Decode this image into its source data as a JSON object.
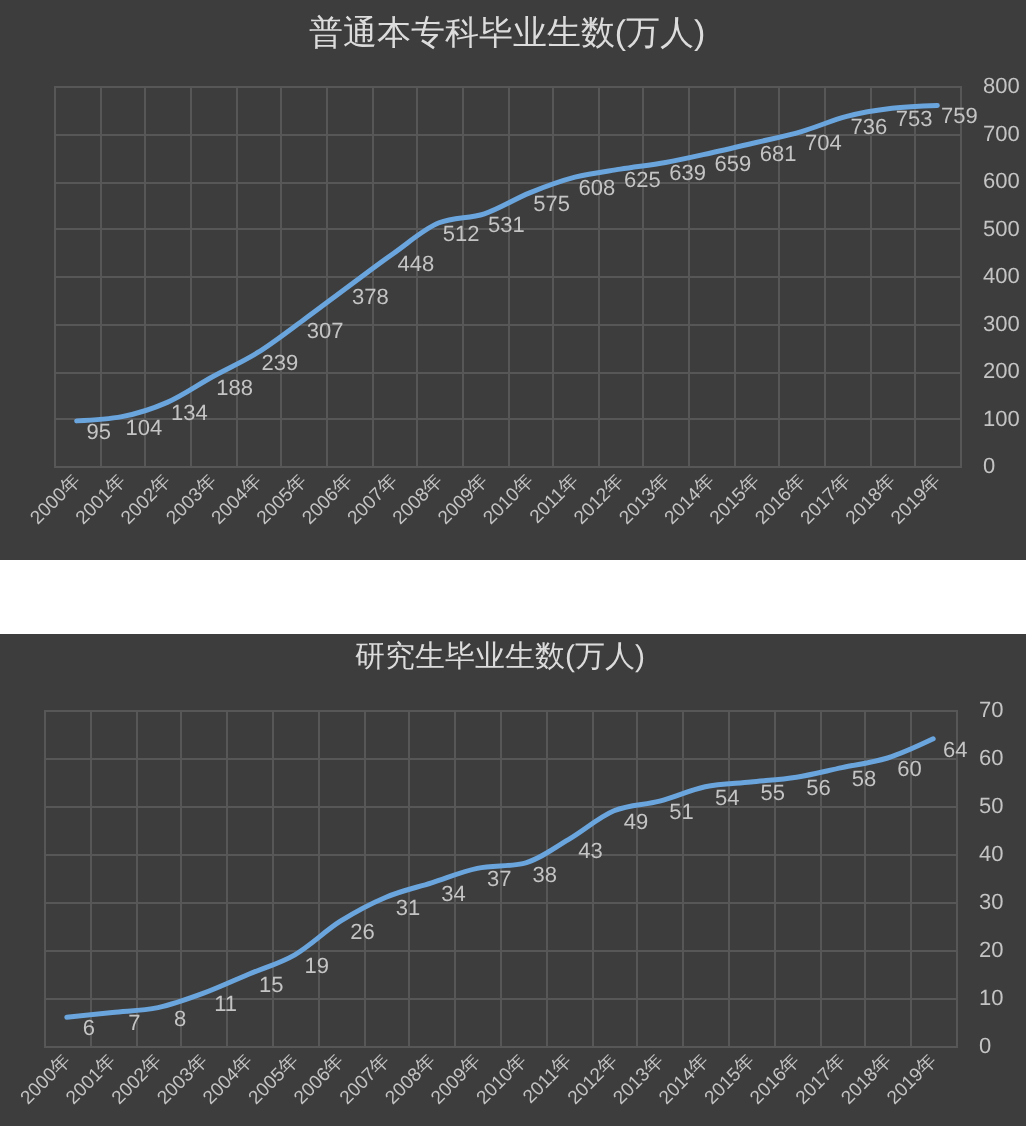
{
  "chart_data": [
    {
      "type": "line",
      "title": "普通本专科毕业生数(万人)",
      "categories": [
        "2000年",
        "2001年",
        "2002年",
        "2003年",
        "2004年",
        "2005年",
        "2006年",
        "2007年",
        "2008年",
        "2009年",
        "2010年",
        "2011年",
        "2012年",
        "2013年",
        "2014年",
        "2015年",
        "2016年",
        "2017年",
        "2018年",
        "2019年"
      ],
      "series": [
        {
          "color": "#6aa5de",
          "values": [
            95,
            104,
            134,
            188,
            239,
            307,
            378,
            448,
            512,
            531,
            575,
            608,
            625,
            639,
            659,
            681,
            704,
            736,
            753,
            759
          ]
        }
      ],
      "ylim": [
        0,
        800
      ],
      "yticks": [
        0,
        100,
        200,
        300,
        400,
        500,
        600,
        700,
        800
      ],
      "grid": true,
      "data_labels": true
    },
    {
      "type": "line",
      "title": "研究生毕业生数(万人)",
      "categories": [
        "2000年",
        "2001年",
        "2002年",
        "2003年",
        "2004年",
        "2005年",
        "2006年",
        "2007年",
        "2008年",
        "2009年",
        "2010年",
        "2011年",
        "2012年",
        "2013年",
        "2014年",
        "2015年",
        "2016年",
        "2017年",
        "2018年",
        "2019年"
      ],
      "series": [
        {
          "color": "#6aa5de",
          "values": [
            6,
            7,
            8,
            11,
            15,
            19,
            26,
            31,
            34,
            37,
            38,
            43,
            49,
            51,
            54,
            55,
            56,
            58,
            60,
            64
          ]
        }
      ],
      "ylim": [
        0,
        70
      ],
      "yticks": [
        0,
        10,
        20,
        30,
        40,
        50,
        60,
        70
      ],
      "grid": true,
      "data_labels": true
    }
  ]
}
